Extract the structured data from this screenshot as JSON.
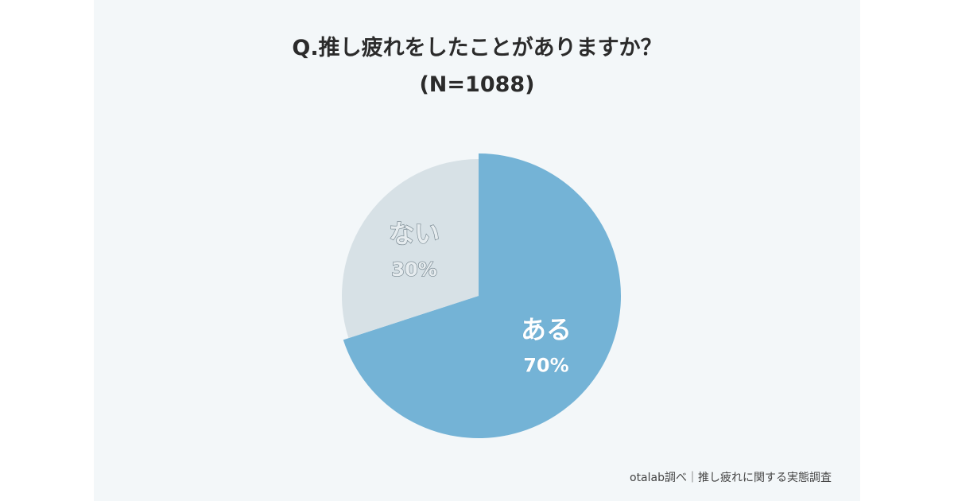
{
  "title": "Q.推し疲れをしたことがありますか？",
  "subtitle": "(N=1088)",
  "source": "otalab調べ｜推し疲れに関する実態調査",
  "chart_data": {
    "type": "pie",
    "categories": [
      "ある",
      "ない"
    ],
    "values": [
      70,
      30
    ],
    "value_labels": [
      "70%",
      "30%"
    ],
    "colors": [
      "#74b3d6",
      "#d7e1e6"
    ],
    "start_angle": "12 o'clock, clockwise"
  }
}
